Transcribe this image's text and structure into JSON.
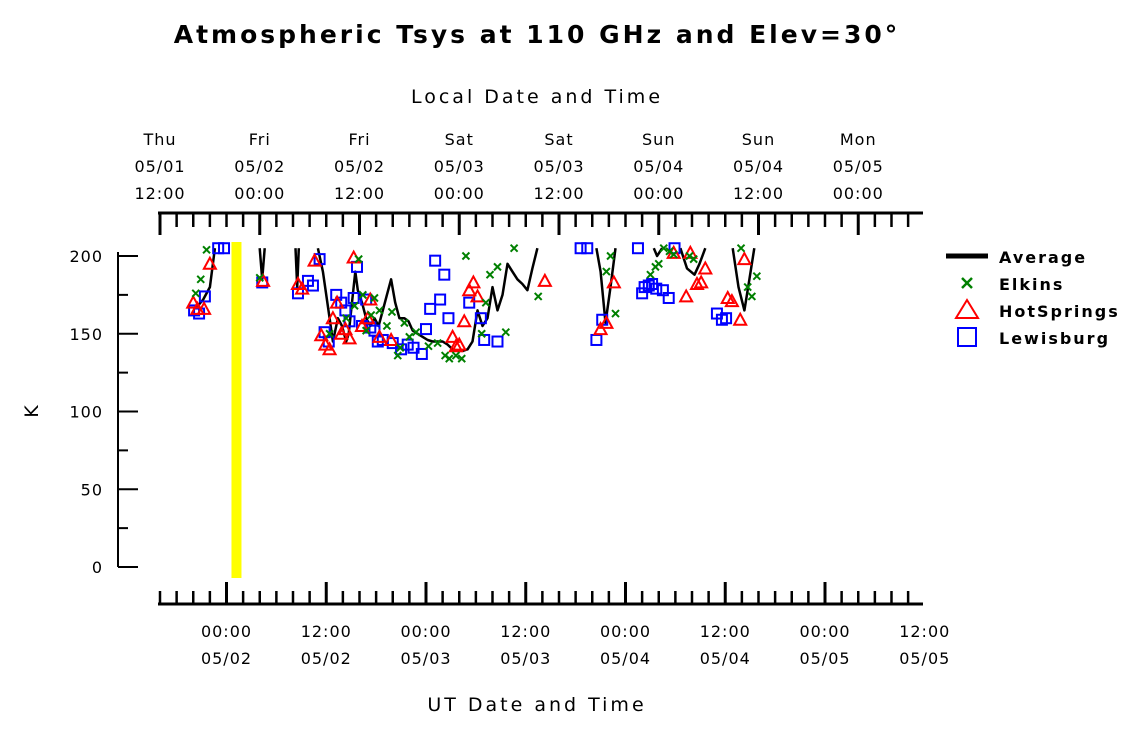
{
  "chart_data": {
    "type": "scatter",
    "title": "Atmospheric Tsys at 110 GHz and Elev=30°",
    "top_axis_label": "Local Date and Time",
    "bottom_axis_label": "UT Date and Time",
    "ylabel": "K",
    "ylim": [
      0,
      200
    ],
    "xlim_ut_hours_since": [
      "2025-05-01 16:00",
      "2025-05-05 11:40"
    ],
    "y_ticks": [
      "0",
      "50",
      "100",
      "150",
      "200"
    ],
    "top_ticks": [
      {
        "day": "Thu",
        "date": "05/01",
        "time": "12:00"
      },
      {
        "day": "Fri",
        "date": "05/02",
        "time": "00:00"
      },
      {
        "day": "Fri",
        "date": "05/02",
        "time": "12:00"
      },
      {
        "day": "Sat",
        "date": "05/03",
        "time": "00:00"
      },
      {
        "day": "Sat",
        "date": "05/03",
        "time": "12:00"
      },
      {
        "day": "Sun",
        "date": "05/04",
        "time": "00:00"
      },
      {
        "day": "Sun",
        "date": "05/04",
        "time": "12:00"
      },
      {
        "day": "Mon",
        "date": "05/05",
        "time": "00:00"
      }
    ],
    "bottom_ticks": [
      {
        "time": "00:00",
        "date": "05/02"
      },
      {
        "time": "12:00",
        "date": "05/02"
      },
      {
        "time": "00:00",
        "date": "05/03"
      },
      {
        "time": "12:00",
        "date": "05/03"
      },
      {
        "time": "00:00",
        "date": "05/04"
      },
      {
        "time": "12:00",
        "date": "05/04"
      },
      {
        "time": "00:00",
        "date": "05/05"
      },
      {
        "time": "12:00",
        "date": "05/05"
      }
    ],
    "now_marker": {
      "x": 9.2,
      "color": "#ffff00"
    },
    "series": [
      {
        "name": "Average",
        "marker": "line",
        "color": "#000000",
        "segments": [
          [
            [
              4.4,
              167
            ],
            [
              5.2,
              172
            ],
            [
              6.0,
              180
            ],
            [
              6.6,
              205
            ]
          ],
          [
            [
              12.0,
              205
            ],
            [
              12.3,
              185
            ],
            [
              12.6,
              205
            ]
          ],
          [
            [
              16.3,
              205
            ],
            [
              16.5,
              180
            ],
            [
              16.7,
              205
            ]
          ],
          [
            [
              19.0,
              205
            ],
            [
              19.6,
              190
            ],
            [
              20.4,
              160
            ],
            [
              20.8,
              145
            ],
            [
              21.4,
              160
            ],
            [
              21.9,
              155
            ],
            [
              22.4,
              145
            ],
            [
              22.7,
              150
            ],
            [
              23.2,
              175
            ],
            [
              23.5,
              190
            ],
            [
              23.8,
              178
            ],
            [
              24.3,
              170
            ],
            [
              24.8,
              160
            ],
            [
              25.3,
              155
            ],
            [
              25.8,
              160
            ],
            [
              26.3,
              155
            ],
            [
              26.8,
              165
            ],
            [
              27.3,
              175
            ],
            [
              27.8,
              185
            ],
            [
              28.3,
              170
            ],
            [
              28.8,
              160
            ],
            [
              29.4,
              160
            ],
            [
              29.9,
              158
            ],
            [
              30.4,
              152
            ],
            [
              31.0,
              150
            ],
            [
              31.6,
              148
            ],
            [
              32.2,
              146
            ],
            [
              32.8,
              145
            ],
            [
              33.4,
              145
            ],
            [
              34.0,
              145
            ],
            [
              34.6,
              143
            ],
            [
              35.2,
              140
            ],
            [
              35.8,
              139
            ],
            [
              36.4,
              139
            ],
            [
              37.0,
              140
            ],
            [
              37.6,
              145
            ],
            [
              38.2,
              165
            ],
            [
              38.8,
              155
            ],
            [
              39.4,
              160
            ],
            [
              40.0,
              180
            ],
            [
              40.6,
              165
            ],
            [
              41.2,
              175
            ],
            [
              41.8,
              195
            ],
            [
              42.4,
              190
            ],
            [
              43.0,
              185
            ],
            [
              43.6,
              182
            ],
            [
              44.2,
              178
            ],
            [
              44.8,
              192
            ],
            [
              45.4,
              205
            ]
          ],
          [
            [
              52.5,
              205
            ],
            [
              53.0,
              190
            ],
            [
              53.6,
              157
            ],
            [
              54.2,
              180
            ],
            [
              54.8,
              205
            ]
          ],
          [
            [
              59.4,
              205
            ],
            [
              59.8,
              200
            ],
            [
              60.4,
              205
            ]
          ],
          [
            [
              62.6,
              205
            ],
            [
              63.4,
              192
            ],
            [
              64.3,
              188
            ],
            [
              64.9,
              195
            ],
            [
              65.6,
              205
            ]
          ],
          [
            [
              68.9,
              205
            ],
            [
              69.6,
              180
            ],
            [
              70.3,
              165
            ],
            [
              70.9,
              185
            ],
            [
              71.5,
              205
            ]
          ]
        ]
      },
      {
        "name": "Elkins",
        "marker": "x",
        "color": "#008000",
        "points": [
          [
            4.3,
            176
          ],
          [
            4.9,
            185
          ],
          [
            5.6,
            204
          ],
          [
            12.0,
            186
          ],
          [
            20.4,
            150
          ],
          [
            22.4,
            160
          ],
          [
            23.4,
            168
          ],
          [
            23.9,
            198
          ],
          [
            24.4,
            175
          ],
          [
            24.8,
            152
          ],
          [
            25.4,
            162
          ],
          [
            25.8,
            173
          ],
          [
            26.4,
            165
          ],
          [
            27.3,
            155
          ],
          [
            27.9,
            164
          ],
          [
            28.6,
            136
          ],
          [
            28.9,
            141
          ],
          [
            29.4,
            157
          ],
          [
            30.0,
            148
          ],
          [
            30.8,
            151
          ],
          [
            32.3,
            142
          ],
          [
            33.4,
            144
          ],
          [
            34.3,
            136
          ],
          [
            34.8,
            134
          ],
          [
            35.6,
            136
          ],
          [
            36.3,
            134
          ],
          [
            36.8,
            200
          ],
          [
            38.7,
            150
          ],
          [
            39.2,
            170
          ],
          [
            39.7,
            188
          ],
          [
            40.6,
            193
          ],
          [
            41.6,
            151
          ],
          [
            42.6,
            205
          ],
          [
            45.5,
            174
          ],
          [
            53.7,
            190
          ],
          [
            54.2,
            200
          ],
          [
            54.8,
            163
          ],
          [
            59.0,
            188
          ],
          [
            59.6,
            193
          ],
          [
            60.0,
            195
          ],
          [
            60.6,
            206
          ],
          [
            61.3,
            203
          ],
          [
            61.8,
            201
          ],
          [
            63.7,
            200
          ],
          [
            64.2,
            198
          ],
          [
            69.9,
            208
          ],
          [
            70.7,
            180
          ],
          [
            71.2,
            174
          ],
          [
            71.8,
            187
          ]
        ]
      },
      {
        "name": "HotSprings",
        "marker": "triangle",
        "color": "#ff0000",
        "points": [
          [
            4.0,
            170
          ],
          [
            4.5,
            166
          ],
          [
            5.3,
            166
          ],
          [
            6.0,
            195
          ],
          [
            12.4,
            184
          ],
          [
            16.6,
            182
          ],
          [
            17.1,
            179
          ],
          [
            18.6,
            197
          ],
          [
            19.4,
            149
          ],
          [
            19.9,
            143
          ],
          [
            20.4,
            140
          ],
          [
            20.8,
            160
          ],
          [
            21.3,
            170
          ],
          [
            21.8,
            150
          ],
          [
            22.3,
            153
          ],
          [
            22.8,
            147
          ],
          [
            23.3,
            199
          ],
          [
            24.3,
            155
          ],
          [
            25.0,
            160
          ],
          [
            25.3,
            172
          ],
          [
            26.4,
            148
          ],
          [
            27.8,
            146
          ],
          [
            35.2,
            148
          ],
          [
            35.6,
            142
          ],
          [
            36.0,
            143
          ],
          [
            36.6,
            158
          ],
          [
            37.2,
            178
          ],
          [
            37.7,
            183
          ],
          [
            38.2,
            174
          ],
          [
            46.3,
            184
          ],
          [
            53.0,
            153
          ],
          [
            53.7,
            157
          ],
          [
            54.6,
            183
          ],
          [
            61.8,
            202
          ],
          [
            63.3,
            174
          ],
          [
            63.8,
            202
          ],
          [
            64.6,
            182
          ],
          [
            65.1,
            183
          ],
          [
            65.6,
            192
          ],
          [
            68.3,
            173
          ],
          [
            68.8,
            171
          ],
          [
            69.8,
            159
          ],
          [
            70.3,
            198
          ]
        ]
      },
      {
        "name": "Lewisburg",
        "marker": "square",
        "color": "#0000ff",
        "points": [
          [
            4.1,
            165
          ],
          [
            4.7,
            163
          ],
          [
            5.4,
            174
          ],
          [
            7.0,
            205
          ],
          [
            7.7,
            207
          ],
          [
            12.3,
            183
          ],
          [
            16.6,
            176
          ],
          [
            17.8,
            184
          ],
          [
            18.4,
            181
          ],
          [
            19.2,
            198
          ],
          [
            19.8,
            151
          ],
          [
            20.3,
            145
          ],
          [
            21.2,
            175
          ],
          [
            21.8,
            170
          ],
          [
            22.3,
            165
          ],
          [
            22.8,
            158
          ],
          [
            23.3,
            173
          ],
          [
            23.7,
            193
          ],
          [
            24.3,
            155
          ],
          [
            24.8,
            172
          ],
          [
            25.3,
            154
          ],
          [
            25.8,
            152
          ],
          [
            26.2,
            145
          ],
          [
            26.8,
            146
          ],
          [
            28.0,
            144
          ],
          [
            29.0,
            140
          ],
          [
            29.8,
            143
          ],
          [
            30.5,
            141
          ],
          [
            31.5,
            137
          ],
          [
            32.0,
            153
          ],
          [
            32.5,
            166
          ],
          [
            33.1,
            197
          ],
          [
            33.7,
            172
          ],
          [
            34.2,
            188
          ],
          [
            34.7,
            160
          ],
          [
            37.2,
            170
          ],
          [
            38.6,
            160
          ],
          [
            39.0,
            146
          ],
          [
            40.6,
            145
          ],
          [
            50.6,
            206
          ],
          [
            51.4,
            205
          ],
          [
            52.5,
            146
          ],
          [
            53.2,
            159
          ],
          [
            57.5,
            207
          ],
          [
            58.0,
            176
          ],
          [
            58.3,
            180
          ],
          [
            58.8,
            181
          ],
          [
            59.2,
            182
          ],
          [
            59.7,
            179
          ],
          [
            60.5,
            178
          ],
          [
            61.2,
            173
          ],
          [
            61.9,
            206
          ],
          [
            67.0,
            163
          ],
          [
            67.6,
            159
          ],
          [
            68.1,
            160
          ]
        ]
      }
    ],
    "legend": {
      "position": "right",
      "entries": [
        "Average",
        "Elkins",
        "HotSprings",
        "Lewisburg"
      ]
    }
  }
}
